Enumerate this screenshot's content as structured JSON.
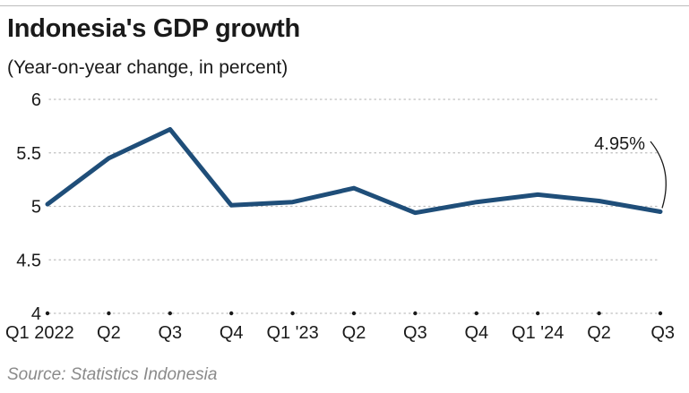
{
  "header": {
    "title": "Indonesia's GDP growth",
    "subtitle": "(Year-on-year change, in percent)"
  },
  "footer": {
    "source": "Source: Statistics Indonesia"
  },
  "colors": {
    "line": "#1f4e79",
    "grid": "#bfbfbf",
    "text": "#1a1a1a",
    "source": "#8a8a8a"
  },
  "chart_data": {
    "type": "line",
    "title": "Indonesia's GDP growth",
    "subtitle": "(Year-on-year change, in percent)",
    "xlabel": "",
    "ylabel": "",
    "categories": [
      "Q1 2022",
      "Q2",
      "Q3",
      "Q4",
      "Q1 '23",
      "Q2",
      "Q3",
      "Q4",
      "Q1 '24",
      "Q2",
      "Q3"
    ],
    "series": [
      {
        "values": [
          5.02,
          5.45,
          5.72,
          5.01,
          5.04,
          5.17,
          4.94,
          5.04,
          5.11,
          5.05,
          4.95
        ]
      }
    ],
    "ylim": [
      4,
      6
    ],
    "yticks": [
      "6",
      "5.5",
      "5",
      "4.5",
      "4"
    ],
    "grid": "horizontal dotted",
    "annotations": [
      {
        "text": "4.95%",
        "target_index": 10
      }
    ]
  }
}
